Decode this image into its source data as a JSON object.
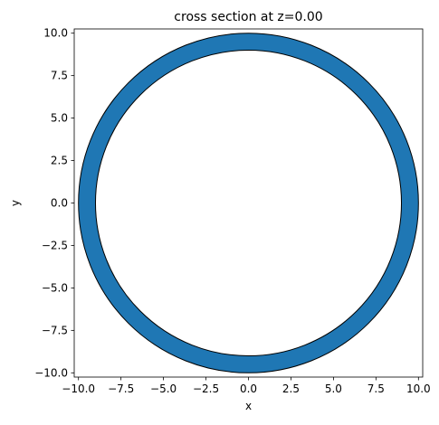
{
  "chart_data": {
    "type": "annulus",
    "title": "cross section at z=0.00",
    "xlabel": "x",
    "ylabel": "y",
    "xlim": [
      -10.25,
      10.25
    ],
    "ylim": [
      -10.25,
      10.25
    ],
    "xticks": [
      -10.0,
      -7.5,
      -5.0,
      -2.5,
      0.0,
      2.5,
      5.0,
      7.5,
      10.0
    ],
    "yticks": [
      -10.0,
      -7.5,
      -5.0,
      -2.5,
      0.0,
      2.5,
      5.0,
      7.5,
      10.0
    ],
    "xtick_labels": [
      "−10.0",
      "−7.5",
      "−5.0",
      "−2.5",
      "0.0",
      "2.5",
      "5.0",
      "7.5",
      "10.0"
    ],
    "ytick_labels": [
      "−10.0",
      "−7.5",
      "−5.0",
      "−2.5",
      "0.0",
      "2.5",
      "5.0",
      "7.5",
      "10.0"
    ],
    "shape": {
      "center": [
        0,
        0
      ],
      "outer_radius": 10.0,
      "inner_radius": 9.0,
      "fill_color": "#1f77b4",
      "edge_color": "#000000"
    },
    "grid": false,
    "aspect": "equal"
  }
}
